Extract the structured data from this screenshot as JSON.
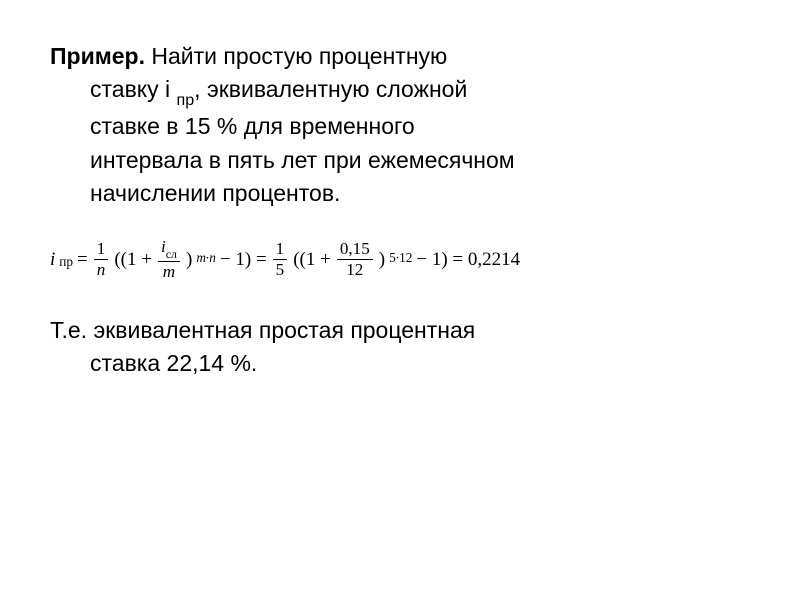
{
  "text": {
    "lead": "Пример.",
    "problem_l1": "  Найти простую процентную",
    "problem_l2": "ставку i ",
    "problem_sub": "пр",
    "problem_l2b": ", эквивалентную сложной",
    "problem_l3": "ставке в 15 % для временного",
    "problem_l4": "интервала в пять лет при ежемесячном",
    "problem_l5": "начислении процентов.",
    "conclusion_l1": "Т.е. эквивалентная простая процентная",
    "conclusion_l2": "ставка 22,14 %."
  },
  "formula": {
    "lhs_var": "i",
    "lhs_sub": "пр",
    "eq": " = ",
    "frac1_num": "1",
    "frac1_den_var": "n",
    "open1": "((1 + ",
    "frac2_num_var": "i",
    "frac2_num_sub": "сл",
    "frac2_den_var": "m",
    "close1": ")",
    "exp1_a": "m",
    "exp1_dot": "∙",
    "exp1_b": "n",
    "minus1": " − 1) = ",
    "frac3_num": "1",
    "frac3_den": "5",
    "open2": "((1 + ",
    "frac4_num": "0,15",
    "frac4_den": "12",
    "close2": ")",
    "exp2": "5∙12",
    "minus2": " − 1) = 0,2214"
  },
  "style": {
    "bg": "#ffffff",
    "text_color": "#000000",
    "body_fontsize": 23,
    "formula_fontsize": 19
  }
}
